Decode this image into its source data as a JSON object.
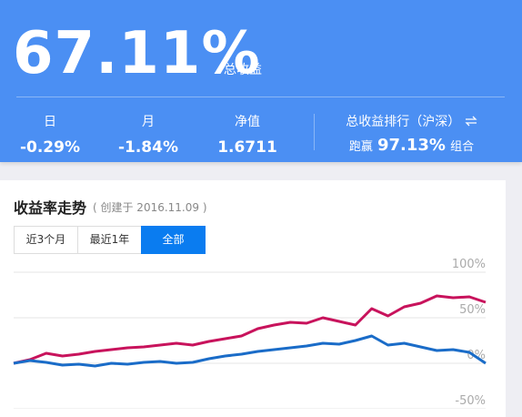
{
  "header": {
    "total_value": "67.11%",
    "total_label": "总收益",
    "stats": [
      {
        "label": "日",
        "value": "-0.29%"
      },
      {
        "label": "月",
        "value": "-1.84%"
      },
      {
        "label": "净值",
        "value": "1.6711"
      }
    ],
    "ranking": {
      "label": "总收益排行（沪深）",
      "prefix": "跑赢",
      "value": "97.13%",
      "suffix": "组合"
    }
  },
  "card": {
    "title": "收益率走势",
    "created": "( 创建于 2016.11.09 )",
    "tabs": [
      "近3个月",
      "最近1年",
      "全部"
    ],
    "active_tab": 2
  },
  "chart_data": {
    "type": "line",
    "ylim": [
      -50,
      100
    ],
    "yticks": [
      {
        "value": 100,
        "label": "100%"
      },
      {
        "value": 50,
        "label": "50%"
      },
      {
        "value": 0,
        "label": "0%"
      },
      {
        "value": -50,
        "label": "-50%"
      }
    ],
    "grid": true,
    "series": [
      {
        "color": "#c8135c",
        "values": [
          0,
          4,
          11,
          8,
          10,
          13,
          15,
          17,
          18,
          20,
          22,
          20,
          24,
          27,
          30,
          38,
          42,
          45,
          44,
          50,
          46,
          42,
          60,
          52,
          62,
          66,
          74,
          72,
          73,
          67
        ]
      },
      {
        "color": "#1a6cc8",
        "values": [
          0,
          3,
          1,
          -2,
          -1,
          -3,
          0,
          -1,
          1,
          2,
          0,
          1,
          5,
          8,
          10,
          13,
          15,
          17,
          19,
          22,
          21,
          25,
          30,
          20,
          22,
          18,
          14,
          15,
          12,
          0
        ]
      }
    ]
  }
}
